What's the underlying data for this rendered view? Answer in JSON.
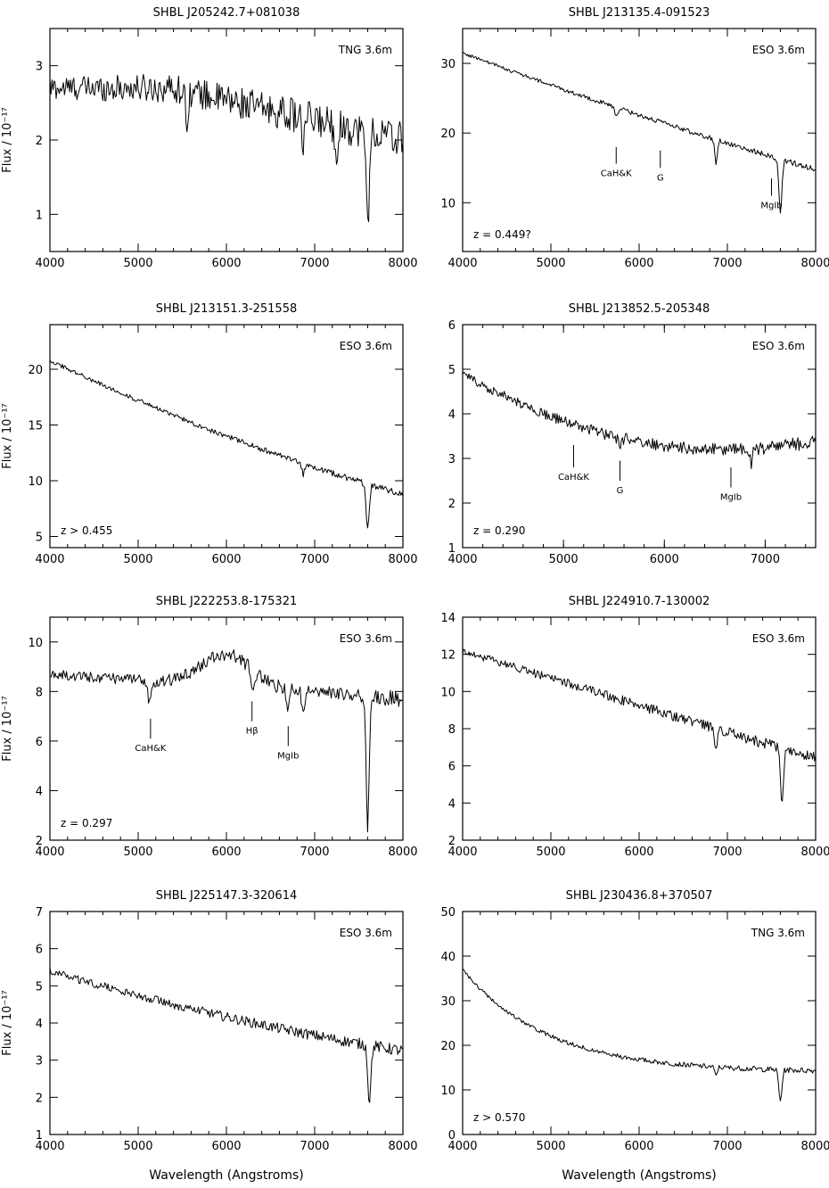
{
  "figure": {
    "ylabel": "Flux / 10⁻¹⁷",
    "xlabel": "Wavelength (Angstroms)"
  },
  "chart_data": [
    {
      "type": "line",
      "title": "SHBL J205242.7+081038",
      "telescope": "TNG 3.6m",
      "redshift": "",
      "xlim": [
        4000,
        8000
      ],
      "ylim": [
        0.5,
        3.5
      ],
      "xticks": [
        4000,
        5000,
        6000,
        7000,
        8000
      ],
      "yticks": [
        1,
        2,
        3
      ],
      "shape": {
        "kind": "flat",
        "a": 2.7,
        "b": 2.7,
        "c": 2.0,
        "noise": 0.16
      },
      "absorptions": [
        {
          "x": 5550,
          "depth": 0.4,
          "width": 20
        },
        {
          "x": 6870,
          "depth": 0.35,
          "width": 25
        },
        {
          "x": 7250,
          "depth": 0.35,
          "width": 25
        },
        {
          "x": 7600,
          "depth": 1.2,
          "width": 25
        }
      ],
      "features": []
    },
    {
      "type": "line",
      "title": "SHBL J213135.4-091523",
      "telescope": "ESO 3.6m",
      "redshift": "z = 0.449?",
      "xlim": [
        4000,
        8000
      ],
      "ylim": [
        3,
        35
      ],
      "xticks": [
        4000,
        5000,
        6000,
        7000,
        8000
      ],
      "yticks": [
        10,
        20,
        30
      ],
      "shape": {
        "kind": "decline",
        "a": 31.5,
        "b": 22,
        "c": 14.8,
        "noise": 0.25
      },
      "absorptions": [
        {
          "x": 5740,
          "depth": 1.0,
          "width": 30
        },
        {
          "x": 6870,
          "depth": 3.5,
          "width": 20
        },
        {
          "x": 7600,
          "depth": 7.5,
          "width": 25
        }
      ],
      "features": [
        {
          "label": "CaH&K",
          "x": 5740,
          "y0": 18,
          "y1": 15.6
        },
        {
          "label": "G",
          "x": 6240,
          "y0": 17.5,
          "y1": 15
        },
        {
          "label": "MgIb",
          "x": 7500,
          "y0": 13.5,
          "y1": 11
        }
      ]
    },
    {
      "type": "line",
      "title": "SHBL J213151.3-251558",
      "telescope": "ESO 3.6m",
      "redshift": "z > 0.455",
      "xlim": [
        4000,
        8000
      ],
      "ylim": [
        4,
        24
      ],
      "xticks": [
        4000,
        5000,
        6000,
        7000,
        8000
      ],
      "yticks": [
        5,
        10,
        15,
        20
      ],
      "shape": {
        "kind": "decline",
        "a": 20.8,
        "b": 13.2,
        "c": 8.8,
        "noise": 0.18
      },
      "absorptions": [
        {
          "x": 6870,
          "depth": 1.0,
          "width": 20
        },
        {
          "x": 7600,
          "depth": 4.2,
          "width": 25
        }
      ],
      "features": []
    },
    {
      "type": "line",
      "title": "SHBL J213852.5-205348",
      "telescope": "ESO 3.6m",
      "redshift": "z = 0.290",
      "xlim": [
        4000,
        7500
      ],
      "ylim": [
        1,
        6
      ],
      "xticks": [
        4000,
        5000,
        6000,
        7000
      ],
      "yticks": [
        1,
        2,
        3,
        4,
        5,
        6
      ],
      "shape": {
        "kind": "valley",
        "a": 4.9,
        "b": 3.2,
        "c": 3.4,
        "noise": 0.1
      },
      "absorptions": [
        {
          "x": 5560,
          "depth": 0.2,
          "width": 25
        },
        {
          "x": 6860,
          "depth": 0.3,
          "width": 20
        }
      ],
      "features": [
        {
          "label": "CaH&K",
          "x": 5100,
          "y0": 3.3,
          "y1": 2.8
        },
        {
          "label": "G",
          "x": 5560,
          "y0": 2.95,
          "y1": 2.5
        },
        {
          "label": "MgIb",
          "x": 6660,
          "y0": 2.8,
          "y1": 2.35
        }
      ]
    },
    {
      "type": "line",
      "title": "SHBL J222253.8-175321",
      "telescope": "ESO 3.6m",
      "redshift": "z = 0.297",
      "xlim": [
        4000,
        8000
      ],
      "ylim": [
        2,
        11
      ],
      "xticks": [
        4000,
        5000,
        6000,
        7000,
        8000
      ],
      "yticks": [
        2,
        4,
        6,
        8,
        10
      ],
      "shape": {
        "kind": "hump",
        "a": 8.7,
        "b": 8.3,
        "c": 7.7,
        "noise": 0.2
      },
      "absorptions": [
        {
          "x": 5130,
          "depth": 0.9,
          "width": 25
        },
        {
          "x": 6300,
          "depth": 0.8,
          "width": 25
        },
        {
          "x": 6690,
          "depth": 0.9,
          "width": 20
        },
        {
          "x": 6870,
          "depth": 1.0,
          "width": 20
        },
        {
          "x": 7600,
          "depth": 5.2,
          "width": 25
        }
      ],
      "features": [
        {
          "label": "CaH&K",
          "x": 5140,
          "y0": 6.9,
          "y1": 6.1
        },
        {
          "label": "Hβ",
          "x": 6290,
          "y0": 7.6,
          "y1": 6.8
        },
        {
          "label": "MgIb",
          "x": 6700,
          "y0": 6.6,
          "y1": 5.8
        }
      ]
    },
    {
      "type": "line",
      "title": "SHBL J224910.7-130002",
      "telescope": "ESO 3.6m",
      "redshift": "",
      "xlim": [
        4000,
        8000
      ],
      "ylim": [
        2,
        14
      ],
      "xticks": [
        4000,
        5000,
        6000,
        7000,
        8000
      ],
      "yticks": [
        2,
        4,
        6,
        8,
        10,
        12,
        14
      ],
      "shape": {
        "kind": "decline",
        "a": 12.2,
        "b": 9.2,
        "c": 6.4,
        "noise": 0.2
      },
      "absorptions": [
        {
          "x": 6870,
          "depth": 0.9,
          "width": 20
        },
        {
          "x": 7620,
          "depth": 3.0,
          "width": 25
        }
      ],
      "features": []
    },
    {
      "type": "line",
      "title": "SHBL J225147.3-320614",
      "telescope": "ESO 3.6m",
      "redshift": "",
      "xlim": [
        4000,
        8000
      ],
      "ylim": [
        1,
        7
      ],
      "xticks": [
        4000,
        5000,
        6000,
        7000,
        8000
      ],
      "yticks": [
        1,
        2,
        3,
        4,
        5,
        6,
        7
      ],
      "shape": {
        "kind": "decline",
        "a": 5.4,
        "b": 4.0,
        "c": 3.25,
        "noise": 0.1
      },
      "absorptions": [
        {
          "x": 7620,
          "depth": 1.5,
          "width": 25
        }
      ],
      "features": []
    },
    {
      "type": "line",
      "title": "SHBL J230436.8+370507",
      "telescope": "TNG 3.6m",
      "redshift": "z > 0.570",
      "xlim": [
        4000,
        8000
      ],
      "ylim": [
        0,
        50
      ],
      "xticks": [
        4000,
        5000,
        6000,
        7000,
        8000
      ],
      "yticks": [
        0,
        10,
        20,
        30,
        40,
        50
      ],
      "shape": {
        "kind": "steep",
        "a": 37,
        "b": 20,
        "c": 14,
        "noise": 0.4
      },
      "absorptions": [
        {
          "x": 6870,
          "depth": 2.0,
          "width": 20
        },
        {
          "x": 7600,
          "depth": 7.0,
          "width": 25
        }
      ],
      "features": []
    }
  ]
}
